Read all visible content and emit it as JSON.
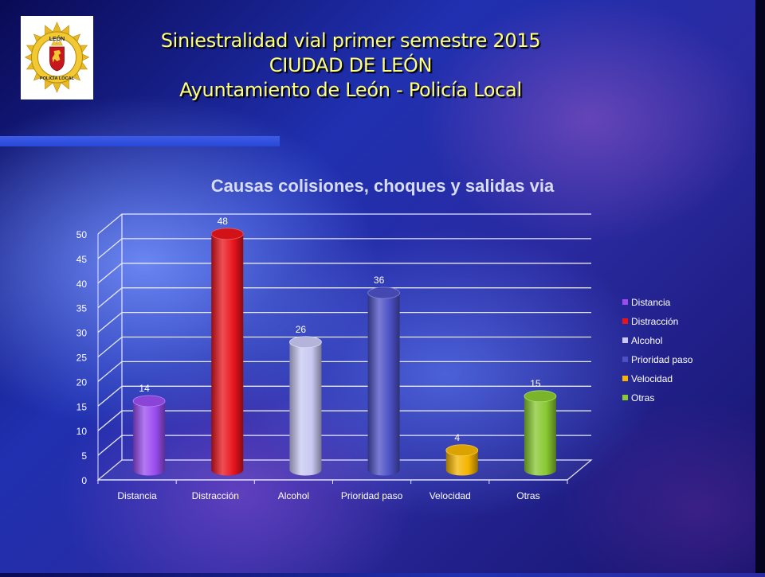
{
  "slide": {
    "title_lines": [
      "Siniestralidad vial primer semestre 2015",
      "CIUDAD DE LEÓN",
      "Ayuntamiento de León - Policía Local"
    ],
    "logo": {
      "icon": "policia-local-leon-badge-icon",
      "text_top": "LEÓN",
      "text_bottom": "POLICÍA LOCAL"
    }
  },
  "colors": {
    "title": "#ffff7a",
    "chart_title": "#d7dcf4",
    "axis_text": "#ffffff",
    "gridline": "#e8e8f6"
  },
  "chart_data": {
    "type": "bar",
    "title": "Causas colisiones, choques y salidas via",
    "categories": [
      "Distancia",
      "Distracción",
      "Alcohol",
      "Prioridad paso",
      "Velocidad",
      "Otras"
    ],
    "values": [
      14,
      48,
      26,
      36,
      4,
      15
    ],
    "colors": [
      "#9a4cf0",
      "#e8141c",
      "#c8c8f2",
      "#4c50c4",
      "#f4b400",
      "#88c830"
    ],
    "ylim": [
      0,
      50
    ],
    "yticks": [
      0,
      5,
      10,
      15,
      20,
      25,
      30,
      35,
      40,
      45,
      50
    ],
    "grid": true,
    "style": "3d-cylinder",
    "data_labels": true,
    "legend_position": "right",
    "legend": [
      "Distancia",
      "Distracción",
      "Alcohol",
      "Prioridad paso",
      "Velocidad",
      "Otras"
    ]
  }
}
